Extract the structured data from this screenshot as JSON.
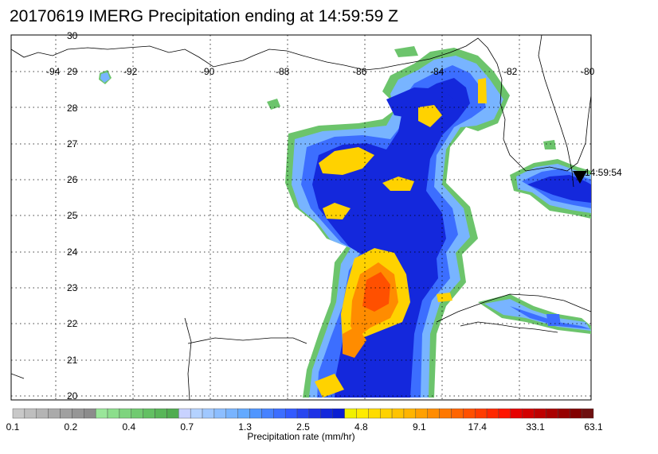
{
  "title": "20170619 IMERG Precipitation ending at 14:59:59 Z",
  "map": {
    "lon_ticks": [
      "-94",
      "-92",
      "-90",
      "-88",
      "-86",
      "-84",
      "-82",
      "-80"
    ],
    "lat_ticks": [
      "30",
      "29",
      "28",
      "27",
      "26",
      "25",
      "24",
      "23",
      "22",
      "21",
      "20"
    ],
    "swath_time_label": "14:59:54"
  },
  "colorbar": {
    "tick_labels": [
      "0.1",
      "0.2",
      "0.4",
      "0.7",
      "1.3",
      "2.5",
      "4.8",
      "9.1",
      "17.4",
      "33.1",
      "63.1"
    ],
    "axis_label": "Precipitation rate (mm/hr)",
    "colors": [
      "#c8c8c8",
      "#bebebe",
      "#b4b4b4",
      "#aaaaaa",
      "#a0a0a0",
      "#969696",
      "#8c8c8c",
      "#9ae69a",
      "#8cde8c",
      "#7ed47e",
      "#70ca70",
      "#62c062",
      "#58b658",
      "#50ac50",
      "#c8d2ff",
      "#b4d2ff",
      "#a0c8ff",
      "#8cbeff",
      "#78b4ff",
      "#64aaff",
      "#5096ff",
      "#4682ff",
      "#3c6eff",
      "#325aff",
      "#2846f0",
      "#1e32e6",
      "#1428dc",
      "#0a1ed2",
      "#f0f000",
      "#ffeb00",
      "#ffdc00",
      "#ffd200",
      "#ffc300",
      "#ffb400",
      "#ffa000",
      "#ff8c00",
      "#ff7800",
      "#ff6400",
      "#ff5000",
      "#ff3c00",
      "#ff2800",
      "#ff1400",
      "#e60000",
      "#d20000",
      "#be0000",
      "#aa0000",
      "#960000",
      "#820000",
      "#6e1010"
    ]
  }
}
